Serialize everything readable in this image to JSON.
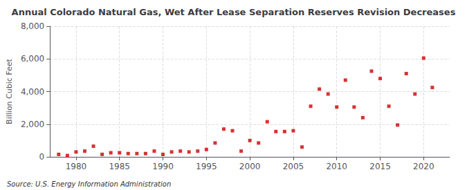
{
  "chart_data": {
    "type": "scatter",
    "title": "Annual Colorado Natural Gas, Wet After Lease Separation Reserves Revision Decreases",
    "ylabel": "Billion Cubic Feet",
    "annotations": [
      "Source: U.S. Energy Information Administration"
    ],
    "x": [
      1978,
      1979,
      1980,
      1981,
      1982,
      1983,
      1984,
      1985,
      1986,
      1987,
      1988,
      1989,
      1990,
      1991,
      1992,
      1993,
      1994,
      1995,
      1996,
      1997,
      1998,
      1999,
      2000,
      2001,
      2002,
      2003,
      2004,
      2005,
      2006,
      2007,
      2008,
      2009,
      2010,
      2011,
      2012,
      2013,
      2014,
      2015,
      2016,
      2017,
      2018,
      2019,
      2020,
      2021
    ],
    "values": [
      150,
      80,
      300,
      350,
      650,
      150,
      250,
      250,
      200,
      200,
      200,
      350,
      150,
      300,
      350,
      300,
      350,
      450,
      850,
      1700,
      1600,
      350,
      1000,
      850,
      2150,
      1550,
      1550,
      1600,
      600,
      3100,
      4150,
      3850,
      3050,
      4700,
      3050,
      2400,
      5250,
      4800,
      3100,
      1950,
      5100,
      3850,
      6050,
      4250
    ],
    "color": "#cc0000",
    "marker": "square",
    "xlim": [
      1977,
      2023
    ],
    "xticks": [
      1980,
      1985,
      1990,
      1995,
      2000,
      2005,
      2010,
      2015,
      2020
    ],
    "ylim": [
      0,
      8000
    ],
    "yticks": [
      0,
      {
        "value": 2000,
        "label": "2,000"
      },
      {
        "value": 4000,
        "label": "4,000"
      },
      {
        "value": 6000,
        "label": "6,000"
      },
      {
        "value": 8000,
        "label": "8,000"
      }
    ],
    "grid": true
  }
}
